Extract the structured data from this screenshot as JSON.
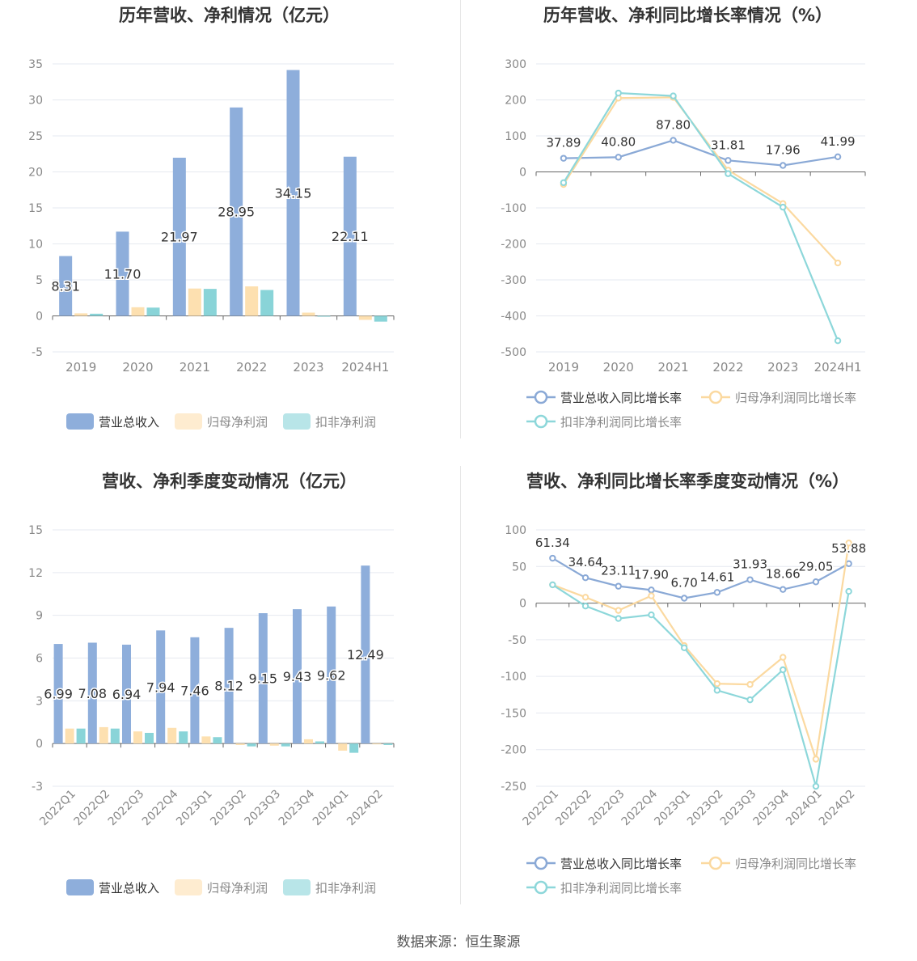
{
  "colors": {
    "revenue": "#8eaedb",
    "net_profit": "#fde0b0",
    "deducted_profit": "#89d4d8",
    "revenue_line": "#8aa9d6",
    "net_profit_line": "#fbd9a0",
    "deducted_line": "#8dd7da",
    "grid": "#e6e9f0",
    "axis_text": "#888888",
    "label_text": "#333333"
  },
  "source": "数据来源：恒生聚源",
  "chart_data": [
    {
      "type": "bar",
      "title": "历年营收、净利情况（亿元）",
      "categories": [
        "2019",
        "2020",
        "2021",
        "2022",
        "2023",
        "2024H1"
      ],
      "yticks": [
        "35",
        "30",
        "25",
        "20",
        "15",
        "10",
        "5",
        "0",
        "-5"
      ],
      "ylim": [
        -5,
        35
      ],
      "series": [
        {
          "name": "营业总收入",
          "values": [
            8.31,
            11.7,
            21.97,
            28.95,
            34.15,
            22.11
          ],
          "labels": [
            "8.31",
            "11.70",
            "21.97",
            "28.95",
            "34.15",
            "22.11"
          ]
        },
        {
          "name": "归母净利润",
          "values": [
            0.35,
            1.2,
            3.8,
            4.1,
            0.45,
            -0.55
          ]
        },
        {
          "name": "扣非净利润",
          "values": [
            0.3,
            1.15,
            3.75,
            3.6,
            -0.05,
            -0.8
          ]
        }
      ],
      "legend": "bottom"
    },
    {
      "type": "line",
      "title": "历年营收、净利同比增长率情况（%）",
      "categories": [
        "2019",
        "2020",
        "2021",
        "2022",
        "2023",
        "2024H1"
      ],
      "yticks": [
        "300",
        "200",
        "100",
        "0",
        "-100",
        "-200",
        "-300",
        "-400",
        "-500"
      ],
      "ylim": [
        -500,
        300
      ],
      "series": [
        {
          "name": "营业总收入同比增长率",
          "values": [
            37.89,
            40.8,
            87.8,
            31.81,
            17.96,
            41.99
          ],
          "labels": [
            "37.89",
            "40.80",
            "87.80",
            "31.81",
            "17.96",
            "41.99"
          ]
        },
        {
          "name": "归母净利润同比增长率",
          "values": [
            -35,
            205,
            207,
            5,
            -88,
            -253
          ]
        },
        {
          "name": "扣非净利润同比增长率",
          "values": [
            -30,
            219,
            211,
            -5,
            -98,
            -469
          ]
        }
      ],
      "legend": "bottom"
    },
    {
      "type": "bar",
      "title": "营收、净利季度变动情况（亿元）",
      "categories": [
        "2022Q1",
        "2022Q2",
        "2022Q3",
        "2022Q4",
        "2023Q1",
        "2023Q2",
        "2023Q3",
        "2023Q4",
        "2024Q1",
        "2024Q2"
      ],
      "yticks": [
        "15",
        "12",
        "9",
        "6",
        "3",
        "0",
        "-3"
      ],
      "ylim": [
        -3,
        15
      ],
      "series": [
        {
          "name": "营业总收入",
          "values": [
            6.99,
            7.08,
            6.94,
            7.94,
            7.46,
            8.12,
            9.15,
            9.43,
            9.62,
            12.49
          ],
          "labels": [
            "6.99",
            "7.08",
            "6.94",
            "7.94",
            "7.46",
            "8.12",
            "9.15",
            "9.43",
            "9.62",
            "12.49"
          ]
        },
        {
          "name": "归母净利润",
          "values": [
            1.05,
            1.15,
            0.85,
            1.1,
            0.5,
            -0.1,
            -0.15,
            0.3,
            -0.5,
            -0.05
          ]
        },
        {
          "name": "扣非净利润",
          "values": [
            1.05,
            1.05,
            0.75,
            0.85,
            0.45,
            -0.2,
            -0.2,
            0.15,
            -0.65,
            -0.1
          ]
        }
      ],
      "legend": "bottom"
    },
    {
      "type": "line",
      "title": "营收、净利同比增长率季度变动情况（%）",
      "categories": [
        "2022Q1",
        "2022Q2",
        "2022Q3",
        "2022Q4",
        "2023Q1",
        "2023Q2",
        "2023Q3",
        "2023Q4",
        "2024Q1",
        "2024Q2"
      ],
      "yticks": [
        "100",
        "50",
        "0",
        "-50",
        "-100",
        "-150",
        "-200",
        "-250"
      ],
      "ylim": [
        -250,
        100
      ],
      "series": [
        {
          "name": "营业总收入同比增长率",
          "values": [
            61.34,
            34.64,
            23.11,
            17.9,
            6.7,
            14.61,
            31.93,
            18.66,
            29.05,
            53.88
          ],
          "labels": [
            "61.34",
            "34.64",
            "23.11",
            "17.90",
            "6.70",
            "14.61",
            "31.93",
            "18.66",
            "29.05",
            "53.88"
          ]
        },
        {
          "name": "归母净利润同比增长率",
          "values": [
            25,
            8,
            -10,
            10,
            -58,
            -110,
            -111,
            -74,
            -213,
            82
          ]
        },
        {
          "name": "扣非净利润同比增长率",
          "values": [
            25,
            -4,
            -21,
            -16,
            -61,
            -119,
            -132,
            -91,
            -250,
            16
          ]
        }
      ],
      "legend": "bottom"
    }
  ]
}
